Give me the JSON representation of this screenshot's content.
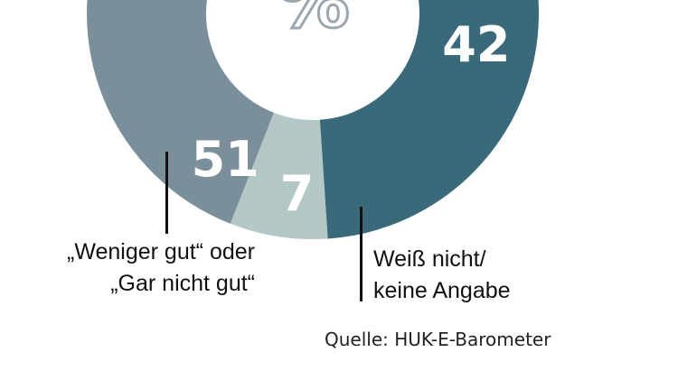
{
  "chart_data": {
    "type": "pie",
    "unit_symbol": "%",
    "segments": [
      {
        "value": 42,
        "label": "",
        "color": "#3a6a7a"
      },
      {
        "value": 7,
        "label": "Weiß nicht/ keine Angabe",
        "color": "#b4c7c7"
      },
      {
        "value": 51,
        "label": "„Weniger gut“ oder „Gar nicht gut“",
        "color": "#7a8f9a"
      }
    ],
    "callouts": {
      "left": [
        "„Weniger gut“ oder",
        "„Gar nicht gut“"
      ],
      "right": [
        "Weiß nicht/",
        "keine Angabe"
      ]
    }
  },
  "source": "Quelle: HUK-E-Barometer"
}
